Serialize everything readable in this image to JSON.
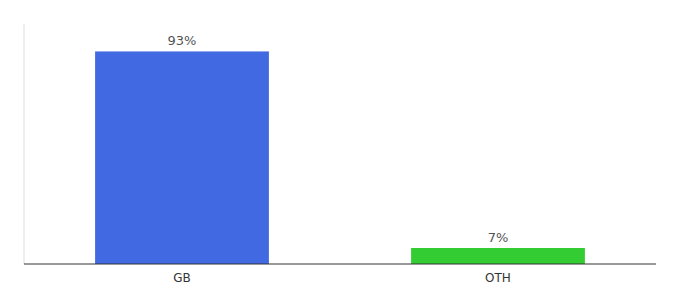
{
  "chart_data": {
    "type": "bar",
    "categories": [
      "GB",
      "OTH"
    ],
    "values": [
      93,
      7
    ],
    "value_labels": [
      "93%",
      "7%"
    ],
    "colors": [
      "#4169e1",
      "#33cc33"
    ],
    "ylim": [
      0,
      105
    ],
    "data_labels": true,
    "tick_labels": "x"
  }
}
